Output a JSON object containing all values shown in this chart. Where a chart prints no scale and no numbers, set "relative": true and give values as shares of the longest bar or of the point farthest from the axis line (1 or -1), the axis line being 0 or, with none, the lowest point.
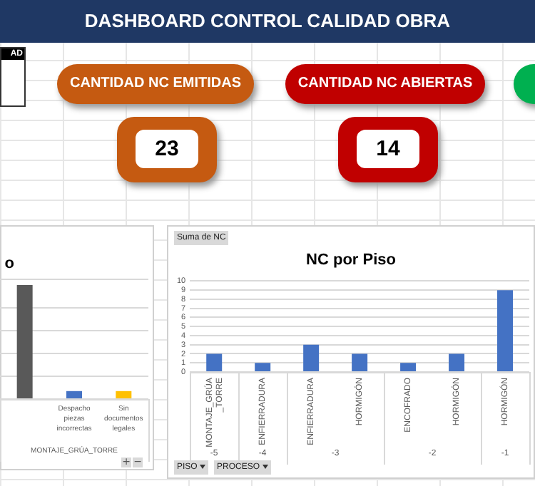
{
  "chart_data": [
    {
      "type": "other",
      "title": "DASHBOARD CONTROL CALIDAD OBRA",
      "annotations": [
        "AD",
        "CANTIDAD NC EMITIDAS",
        "23",
        "CANTIDAD NC ABIERTAS",
        "14"
      ]
    },
    {
      "type": "bar",
      "title": "o",
      "categories": [
        null,
        "Despacho piezas incorrectas",
        "Sin documentos legales"
      ],
      "relative": true,
      "colors": [
        "#595959",
        "#4472c4",
        "#ffc000"
      ],
      "values": [
        1,
        0.07,
        0.07
      ],
      "grid": "y",
      "annotations": [
        "MONTAJE_GRÚA_TORRE",
        "+",
        "−"
      ]
    },
    {
      "type": "bar",
      "title": "NC por Piso",
      "categories": [
        "MONTAJE_GRÚA_TORRE",
        "ENFIERRADURA",
        "ENFIERRADURA",
        "HORMIGÓN",
        "ENCOFRADO",
        "HORMIGÓN",
        "HORMIGÓN"
      ],
      "values": [
        2,
        1,
        3,
        2,
        1,
        2,
        9
      ],
      "color": "#4472c4",
      "ylim": [
        0,
        10
      ],
      "yticks": [
        0,
        1,
        2,
        3,
        4,
        5,
        6,
        7,
        8,
        9,
        10
      ],
      "grid": "y",
      "annotations": [
        "-5",
        "-4",
        "-3",
        "-2",
        "-1",
        "Suma de NC",
        "PISO",
        "PROCESO"
      ]
    }
  ]
}
